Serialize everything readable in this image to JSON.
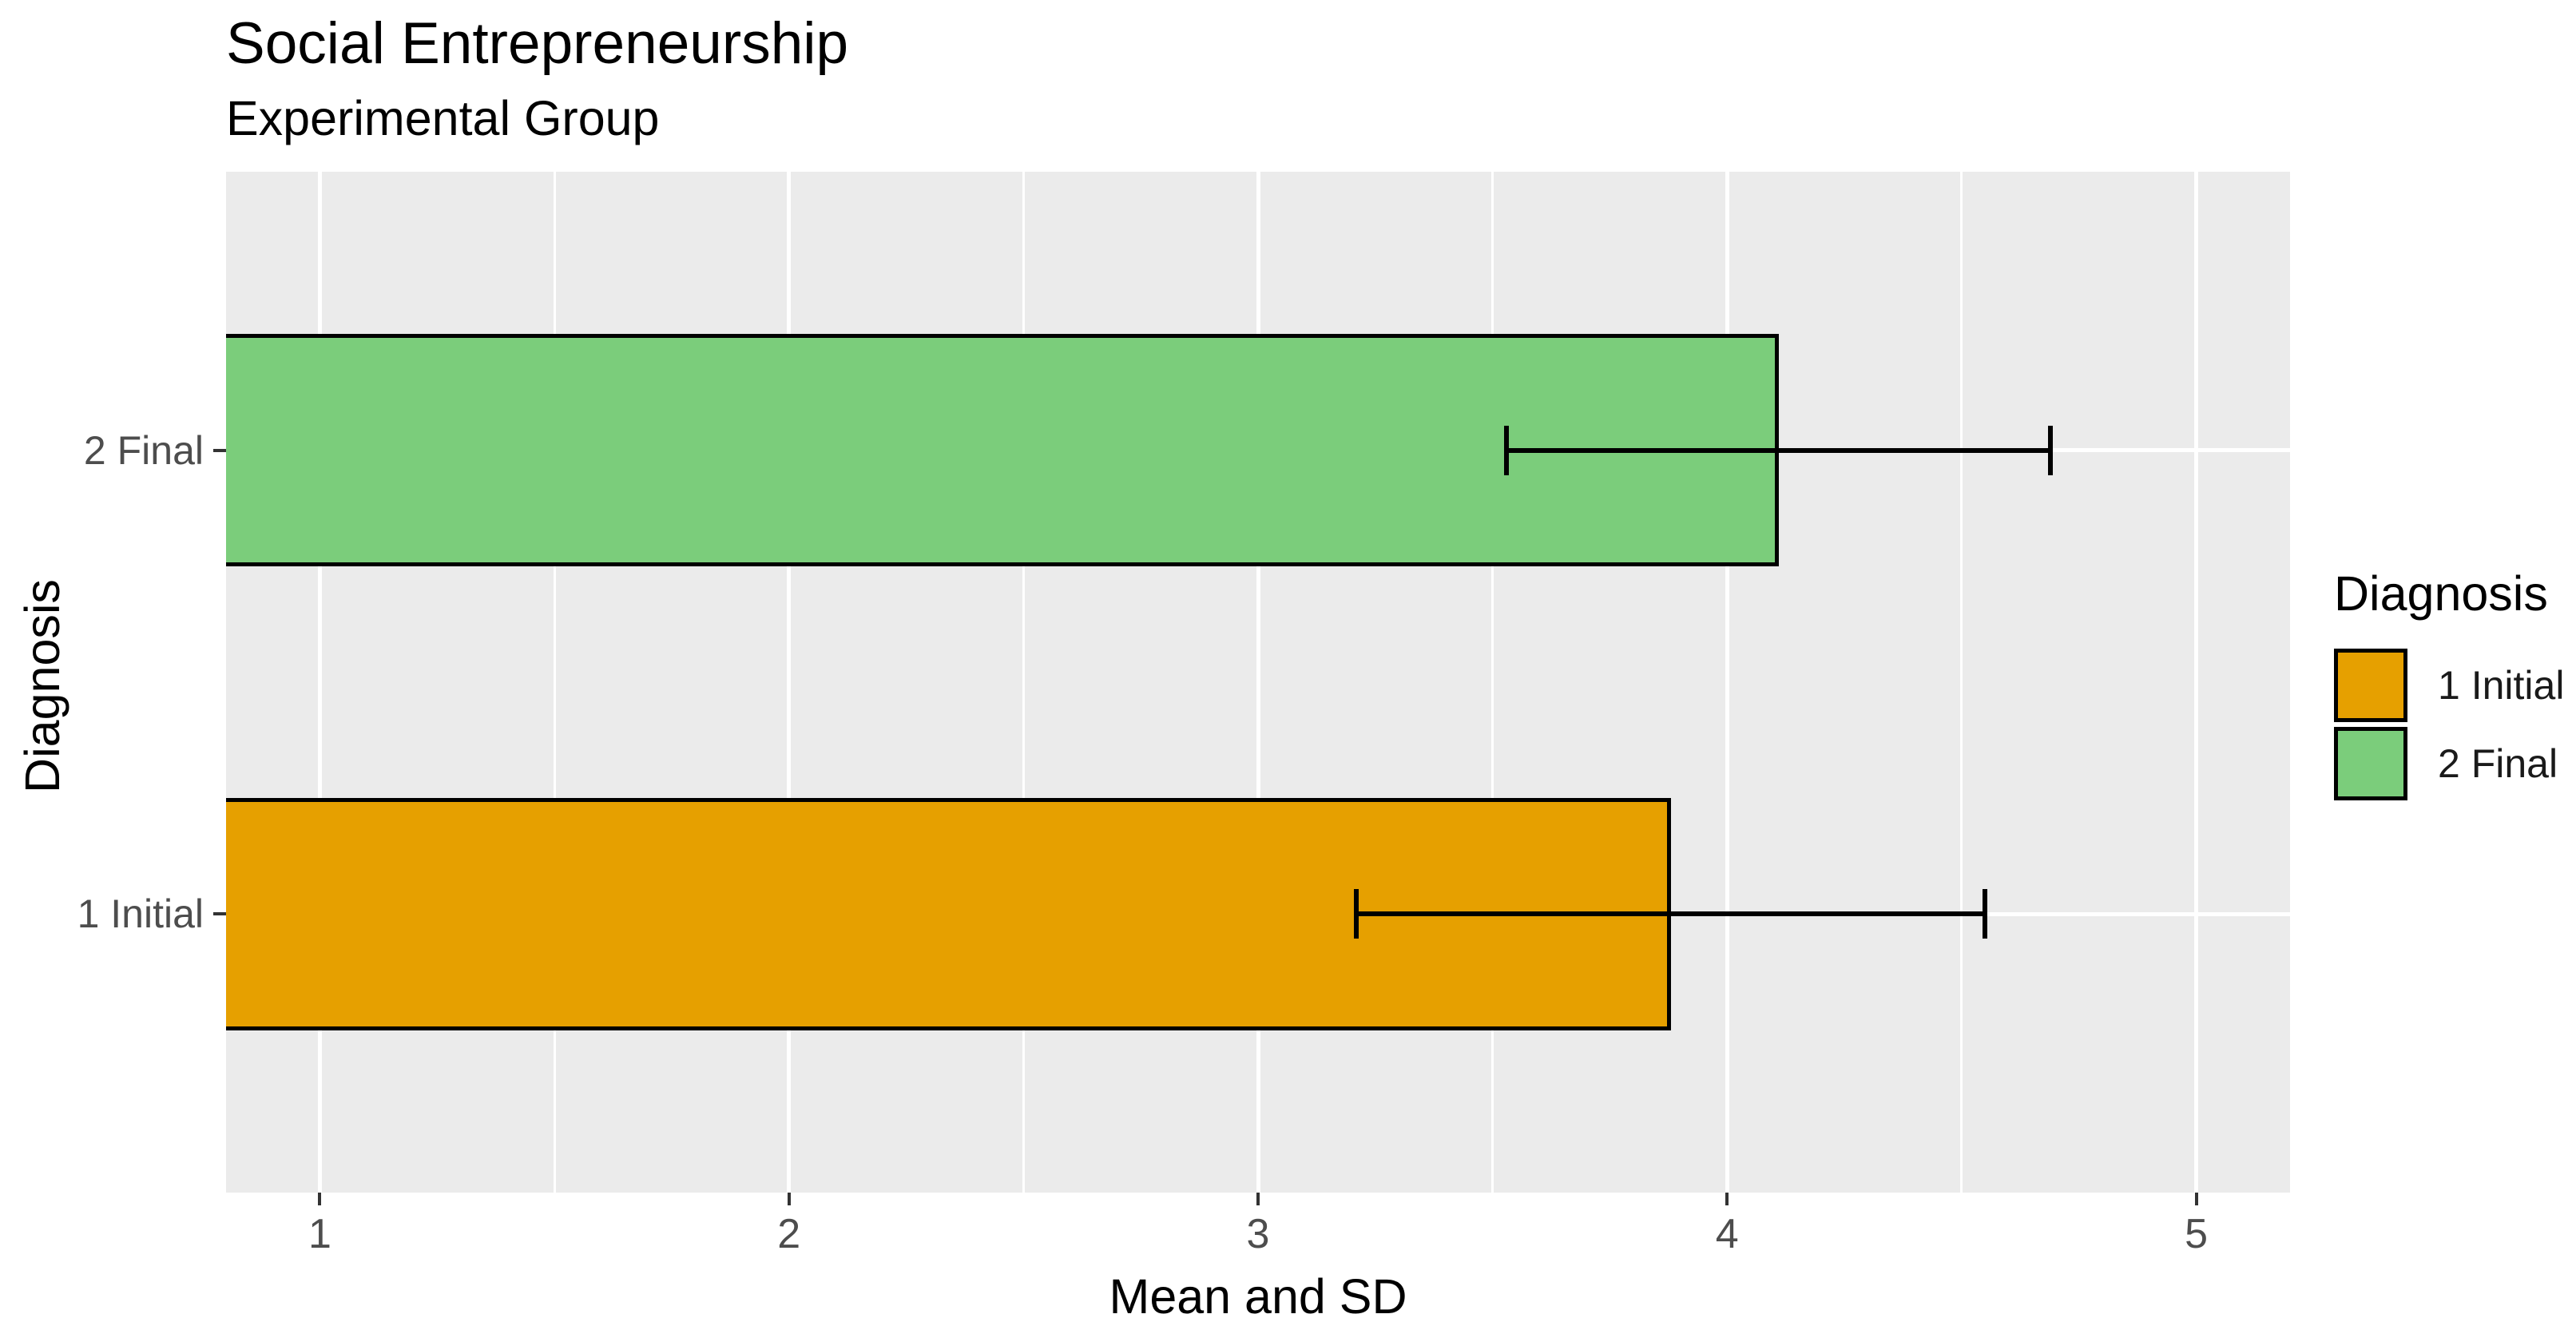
{
  "header": {
    "title": "Social Entrepreneurship",
    "subtitle": "Experimental Group"
  },
  "axes": {
    "x_title": "Mean and SD",
    "y_title": "Diagnosis",
    "x_tick_labels": [
      "1",
      "2",
      "3",
      "4",
      "5"
    ],
    "y_tick_labels": [
      "2 Final",
      "1 Initial"
    ]
  },
  "colors": {
    "initial_fill": "#E6A000",
    "final_fill": "#7BCD7B",
    "bar_border": "#000000",
    "panel_background": "#EBEBEB",
    "gridline": "#FFFFFF",
    "axis_text": "#4D4D4D",
    "tick_mark": "#333333",
    "title_text": "#000000"
  },
  "chart_data": {
    "type": "bar",
    "orientation": "horizontal",
    "title": "Social Entrepreneurship",
    "subtitle": "Experimental Group",
    "xlabel": "Mean and SD",
    "ylabel": "Diagnosis",
    "categories": [
      "1 Initial",
      "2 Final"
    ],
    "series": [
      {
        "name": "mean",
        "values": [
          3.88,
          4.11
        ]
      },
      {
        "name": "sd",
        "values": [
          0.67,
          0.58
        ]
      }
    ],
    "bars": [
      {
        "category": "1 Initial",
        "mean": 3.88,
        "sd": 0.67,
        "error_low": 3.21,
        "error_high": 4.55,
        "color": "#E6A000",
        "row_position": "bottom"
      },
      {
        "category": "2 Final",
        "mean": 4.11,
        "sd": 0.58,
        "error_low": 3.53,
        "error_high": 4.69,
        "color": "#7BCD7B",
        "row_position": "top"
      }
    ],
    "x_ticks": [
      1,
      2,
      3,
      4,
      5
    ],
    "x_minor_ticks": [
      1.5,
      2.5,
      3.5,
      4.5
    ],
    "xlim": [
      0.8,
      5.2
    ],
    "bar_base": 0.8,
    "grid": "on",
    "legend": {
      "title": "Diagnosis",
      "position": "right",
      "entries": [
        {
          "label": "1 Initial",
          "color": "#E6A000"
        },
        {
          "label": "2 Final",
          "color": "#7BCD7B"
        }
      ]
    }
  }
}
